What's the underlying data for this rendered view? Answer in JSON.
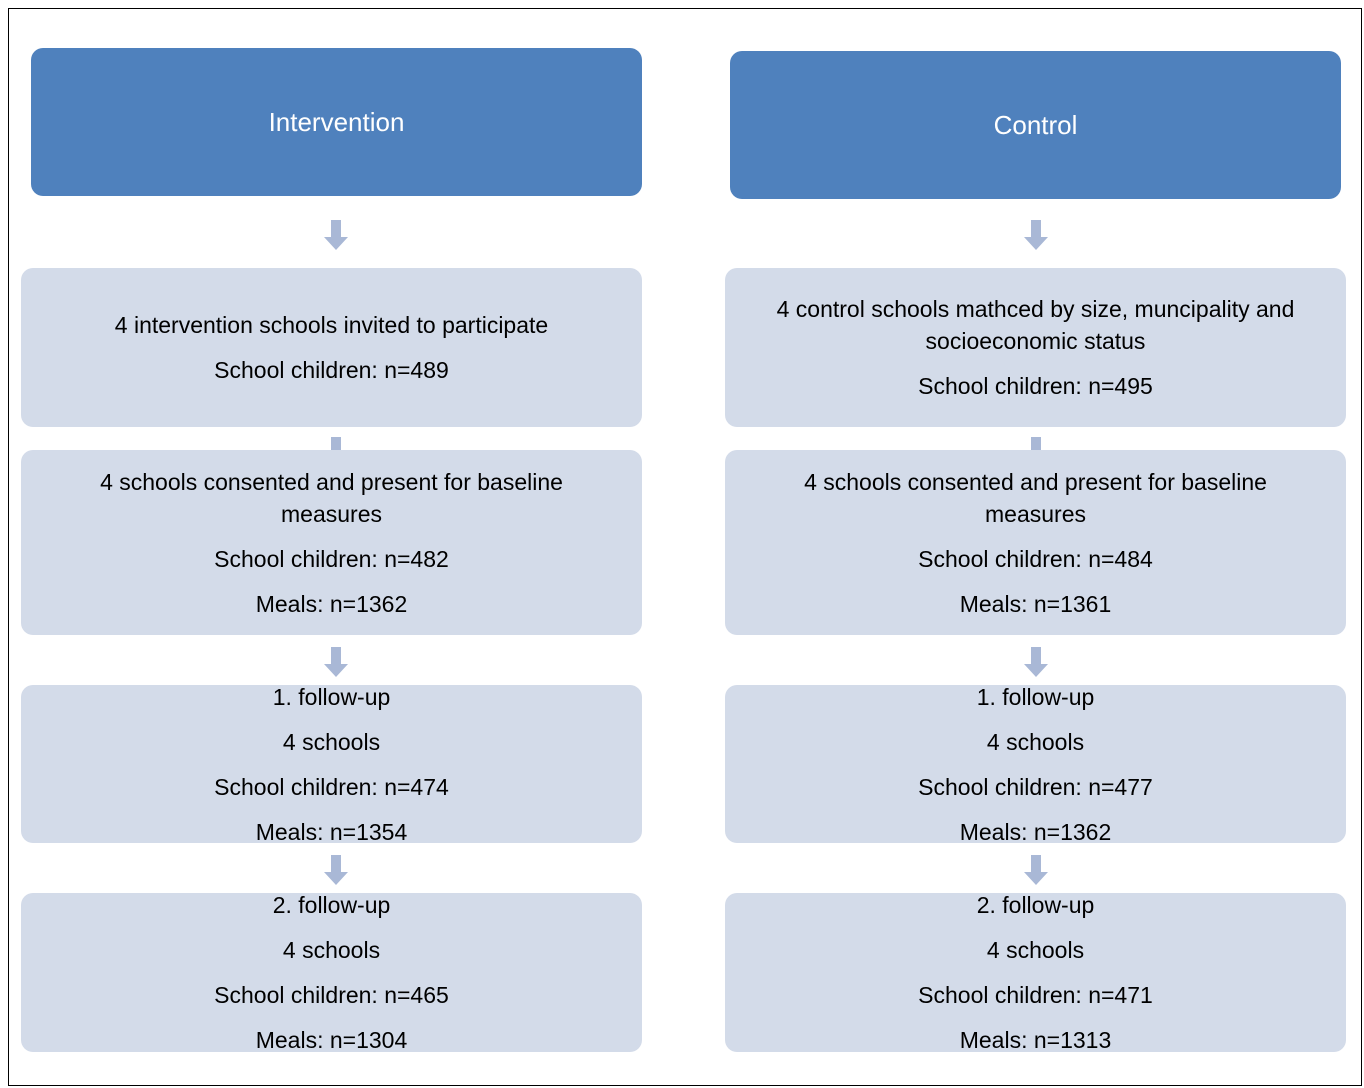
{
  "columns": [
    {
      "header": "Intervention",
      "boxes": [
        {
          "lines": [
            "4 intervention schools invited to participate",
            "School children: n=489"
          ]
        },
        {
          "lines": [
            "4 schools consented and present for baseline measures",
            "School children: n=482",
            "Meals: n=1362"
          ]
        },
        {
          "lines": [
            "1. follow-up",
            "4 schools",
            "School children: n=474",
            "Meals: n=1354"
          ]
        },
        {
          "lines": [
            "2. follow-up",
            "4 schools",
            "School children: n=465",
            "Meals: n=1304"
          ]
        }
      ]
    },
    {
      "header": "Control",
      "boxes": [
        {
          "lines": [
            "4 control schools mathced by size, muncipality and socioeconomic status",
            "School children: n=495"
          ]
        },
        {
          "lines": [
            "4 schools consented and present for baseline measures",
            "School children: n=484",
            "Meals: n=1361"
          ]
        },
        {
          "lines": [
            "1. follow-up",
            "4 schools",
            "School children: n=477",
            "Meals: n=1362"
          ]
        },
        {
          "lines": [
            "2. follow-up",
            "4 schools",
            "School children: n=471",
            "Meals: n=1313"
          ]
        }
      ]
    }
  ]
}
